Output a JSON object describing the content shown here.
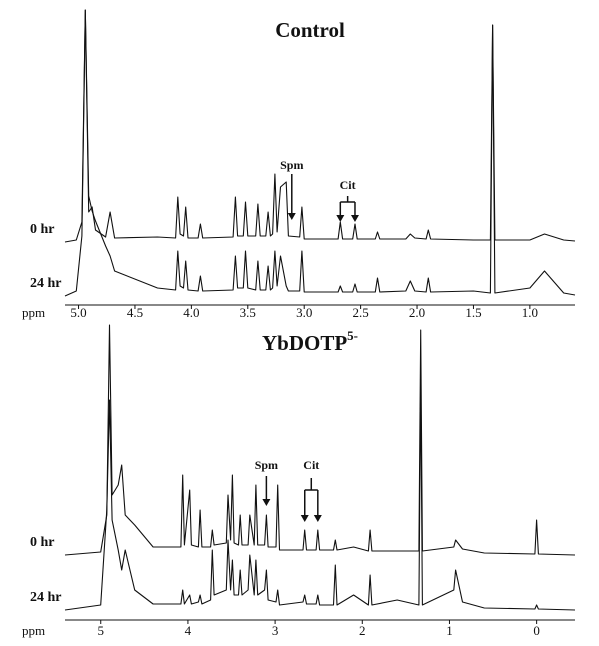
{
  "chart_data": [
    {
      "type": "line",
      "title": "Control",
      "xlabel": "ppm",
      "xlim": [
        5.12,
        0.6
      ],
      "xticks": [
        {
          "value": 5,
          "label": "5.0"
        },
        4.5,
        {
          "value": 4,
          "label": "4.0"
        },
        3.5,
        {
          "value": 3,
          "label": "3.0"
        },
        2.5,
        {
          "value": 2,
          "label": "2.0"
        },
        1.5,
        {
          "value": 1,
          "label": "1.0"
        }
      ],
      "annotations": [
        {
          "text": "Spm",
          "x": [
            3.11
          ]
        },
        {
          "text": "Cit",
          "x": [
            2.68,
            2.55
          ]
        }
      ],
      "series": [
        {
          "name": "0 hr",
          "color": "#111111",
          "x": [
            5.12,
            5.02,
            4.97,
            4.94,
            4.91,
            4.88,
            4.85,
            4.76,
            4.72,
            4.68,
            4.3,
            4.14,
            4.12,
            4.1,
            4.07,
            4.05,
            4.03,
            3.94,
            3.92,
            3.9,
            3.63,
            3.61,
            3.59,
            3.54,
            3.52,
            3.5,
            3.43,
            3.41,
            3.39,
            3.34,
            3.32,
            3.3,
            3.28,
            3.26,
            3.24,
            3.21,
            3.16,
            3.14,
            3.04,
            3.02,
            3.0,
            2.7,
            2.68,
            2.66,
            2.57,
            2.55,
            2.53,
            2.37,
            2.35,
            2.33,
            2.1,
            2.06,
            2.02,
            1.92,
            1.9,
            1.88,
            1.5,
            1.35,
            1.33,
            1.31,
            1.0,
            0.87,
            0.7,
            0.6
          ],
          "values": [
            0,
            2,
            20,
            232,
            30,
            35,
            12,
            5,
            30,
            4,
            5,
            4,
            45,
            8,
            6,
            35,
            4,
            4,
            18,
            4,
            5,
            45,
            6,
            6,
            40,
            6,
            6,
            38,
            6,
            6,
            30,
            6,
            8,
            68,
            10,
            55,
            60,
            6,
            5,
            35,
            3,
            3,
            20,
            3,
            3,
            18,
            3,
            3,
            10,
            3,
            3,
            8,
            4,
            3,
            12,
            3,
            2,
            2,
            217,
            2,
            2,
            8,
            2,
            1
          ]
        },
        {
          "name": "24 hr",
          "color": "#111111",
          "x": [
            5.12,
            5.02,
            4.97,
            4.94,
            4.91,
            4.88,
            4.85,
            4.76,
            4.72,
            4.68,
            4.3,
            4.14,
            4.12,
            4.1,
            4.07,
            4.05,
            4.03,
            3.94,
            3.92,
            3.9,
            3.63,
            3.61,
            3.59,
            3.54,
            3.52,
            3.5,
            3.43,
            3.41,
            3.39,
            3.34,
            3.32,
            3.3,
            3.28,
            3.26,
            3.24,
            3.21,
            3.16,
            3.14,
            3.04,
            3.02,
            3.0,
            2.7,
            2.68,
            2.66,
            2.57,
            2.55,
            2.53,
            2.37,
            2.35,
            2.33,
            2.1,
            2.06,
            2.02,
            1.92,
            1.9,
            1.88,
            1.5,
            1.35,
            1.33,
            1.31,
            1.0,
            0.87,
            0.7,
            0.6
          ],
          "values": [
            0,
            5,
            60,
            286,
            100,
            85,
            75,
            50,
            40,
            25,
            8,
            6,
            45,
            10,
            8,
            35,
            6,
            5,
            20,
            5,
            6,
            40,
            8,
            8,
            45,
            8,
            6,
            35,
            6,
            6,
            30,
            6,
            8,
            45,
            10,
            40,
            10,
            5,
            5,
            45,
            4,
            4,
            10,
            4,
            4,
            12,
            4,
            4,
            18,
            4,
            5,
            15,
            5,
            4,
            18,
            4,
            5,
            3,
            271,
            3,
            8,
            25,
            3,
            1
          ]
        }
      ]
    },
    {
      "type": "line",
      "title": "YbDOTP",
      "title_superscript": "5-",
      "xlabel": "ppm",
      "xlim": [
        5.41,
        -0.44
      ],
      "xticks": [
        5,
        4,
        3,
        2,
        1,
        0
      ],
      "annotations": [
        {
          "text": "Spm",
          "x": [
            3.1
          ]
        },
        {
          "text": "Cit",
          "x": [
            2.66,
            2.51
          ]
        }
      ],
      "series": [
        {
          "name": "0 hr",
          "color": "#111111",
          "x": [
            5.41,
            5.0,
            4.93,
            4.9,
            4.87,
            4.8,
            4.76,
            4.72,
            4.61,
            4.4,
            4.08,
            4.06,
            4.04,
            3.98,
            3.96,
            3.88,
            3.86,
            3.84,
            3.74,
            3.72,
            3.7,
            3.56,
            3.54,
            3.51,
            3.49,
            3.47,
            3.42,
            3.4,
            3.38,
            3.31,
            3.29,
            3.24,
            3.22,
            3.2,
            3.12,
            3.1,
            3.08,
            2.99,
            2.97,
            2.95,
            2.68,
            2.66,
            2.64,
            2.53,
            2.51,
            2.49,
            2.33,
            2.31,
            2.29,
            2.1,
            1.93,
            1.91,
            1.89,
            1.6,
            1.35,
            1.33,
            1.31,
            0.95,
            0.93,
            0.85,
            0.6,
            0.02,
            0.0,
            -0.02,
            -0.44
          ],
          "values": [
            0,
            3,
            40,
            230,
            60,
            70,
            90,
            40,
            30,
            8,
            8,
            80,
            10,
            65,
            10,
            8,
            45,
            8,
            8,
            25,
            10,
            12,
            60,
            15,
            80,
            12,
            10,
            40,
            10,
            10,
            40,
            10,
            70,
            10,
            10,
            40,
            8,
            8,
            70,
            5,
            5,
            25,
            5,
            5,
            25,
            5,
            5,
            15,
            5,
            8,
            4,
            25,
            4,
            4,
            4,
            225,
            4,
            8,
            15,
            6,
            2,
            1,
            35,
            1,
            0
          ]
        },
        {
          "name": "24 hr",
          "color": "#111111",
          "x": [
            5.41,
            5.0,
            4.93,
            4.9,
            4.87,
            4.8,
            4.76,
            4.72,
            4.61,
            4.4,
            4.08,
            4.06,
            4.04,
            3.98,
            3.96,
            3.88,
            3.86,
            3.84,
            3.74,
            3.72,
            3.7,
            3.56,
            3.54,
            3.51,
            3.49,
            3.47,
            3.42,
            3.4,
            3.38,
            3.31,
            3.29,
            3.24,
            3.22,
            3.2,
            3.12,
            3.1,
            3.08,
            2.99,
            2.97,
            2.95,
            2.68,
            2.66,
            2.64,
            2.53,
            2.51,
            2.49,
            2.33,
            2.31,
            2.29,
            2.1,
            1.93,
            1.91,
            1.89,
            1.6,
            1.35,
            1.33,
            1.31,
            0.95,
            0.93,
            0.85,
            0.6,
            0.02,
            0.0,
            -0.02,
            -0.44
          ],
          "values": [
            0,
            5,
            100,
            210,
            90,
            60,
            40,
            60,
            20,
            6,
            6,
            20,
            6,
            15,
            6,
            8,
            15,
            6,
            10,
            60,
            15,
            20,
            70,
            20,
            50,
            15,
            15,
            40,
            15,
            20,
            55,
            15,
            50,
            15,
            20,
            40,
            10,
            8,
            20,
            5,
            8,
            15,
            6,
            6,
            15,
            5,
            5,
            45,
            5,
            15,
            5,
            35,
            5,
            10,
            5,
            230,
            5,
            20,
            40,
            8,
            2,
            1,
            5,
            1,
            0
          ]
        }
      ]
    }
  ]
}
